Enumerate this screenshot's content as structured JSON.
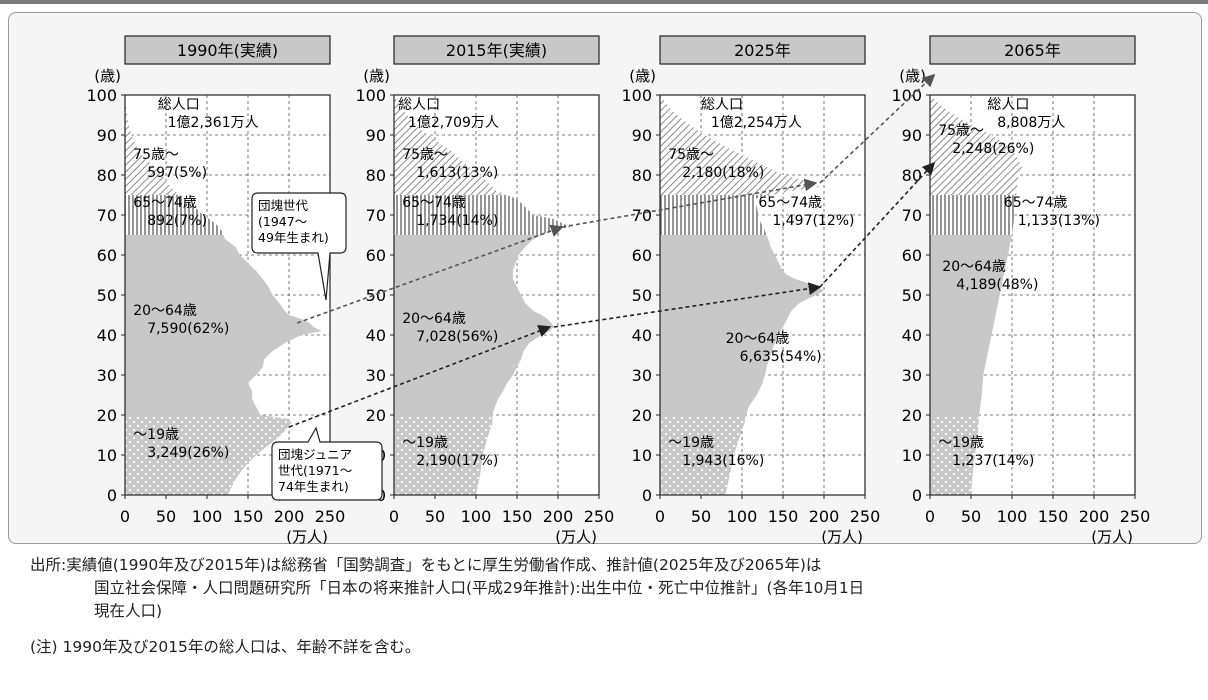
{
  "chart_data": [
    {
      "type": "area",
      "title": "1990年(実績)",
      "ylabel": "(歳)",
      "xlabel": "(万人)",
      "xlim": [
        0,
        250
      ],
      "ylim": [
        0,
        100
      ],
      "xticks": [
        "0",
        "50",
        "100",
        "150",
        "200",
        "250"
      ],
      "yticks": [
        "0",
        "10",
        "20",
        "30",
        "40",
        "50",
        "60",
        "70",
        "80",
        "90",
        "100"
      ],
      "age_profile": {
        "ages": [
          0,
          2,
          4,
          6,
          8,
          10,
          12,
          14,
          16,
          18,
          19,
          20,
          22,
          24,
          26,
          28,
          30,
          32,
          34,
          36,
          38,
          40,
          41,
          42,
          43,
          44,
          45,
          46,
          48,
          50,
          52,
          54,
          56,
          58,
          60,
          62,
          64,
          66,
          68,
          70,
          72,
          74,
          76,
          78,
          80,
          82,
          84,
          86,
          88,
          90,
          92,
          94,
          96,
          98,
          100
        ],
        "values": [
          125,
          130,
          135,
          142,
          150,
          160,
          172,
          185,
          195,
          203,
          200,
          165,
          160,
          155,
          155,
          150,
          160,
          168,
          170,
          180,
          195,
          215,
          240,
          230,
          225,
          215,
          200,
          195,
          188,
          180,
          175,
          168,
          160,
          150,
          140,
          135,
          122,
          118,
          110,
          95,
          85,
          75,
          60,
          52,
          45,
          36,
          25,
          17,
          12,
          8,
          5,
          3,
          2,
          1,
          0
        ]
      },
      "total": {
        "label": "総人口",
        "value": "1億2,361万人"
      },
      "groups": [
        {
          "name": "75歳〜",
          "value": "597(5%)"
        },
        {
          "name": "65〜74歳",
          "value": "892(7%)"
        },
        {
          "name": "20〜64歳",
          "value": "7,590(62%)"
        },
        {
          "name": "〜19歳",
          "value": "3,249(26%)"
        }
      ]
    },
    {
      "type": "area",
      "title": "2015年(実績)",
      "ylabel": "(歳)",
      "xlabel": "(万人)",
      "xlim": [
        0,
        250
      ],
      "ylim": [
        0,
        100
      ],
      "xticks": [
        "0",
        "50",
        "100",
        "150",
        "200",
        "250"
      ],
      "yticks": [
        "0",
        "10",
        "20",
        "30",
        "40",
        "50",
        "60",
        "70",
        "80",
        "90",
        "100"
      ],
      "age_profile": {
        "ages": [
          0,
          5,
          10,
          15,
          18,
          20,
          22,
          24,
          26,
          28,
          30,
          32,
          34,
          36,
          38,
          40,
          41,
          42,
          43,
          44,
          45,
          46,
          48,
          50,
          52,
          54,
          56,
          58,
          60,
          62,
          64,
          66,
          67,
          68,
          69,
          70,
          72,
          74,
          76,
          78,
          80,
          82,
          84,
          86,
          88,
          90,
          92,
          94,
          96,
          98,
          100
        ],
        "values": [
          100,
          105,
          108,
          115,
          120,
          120,
          123,
          127,
          133,
          138,
          145,
          150,
          155,
          158,
          165,
          180,
          190,
          195,
          192,
          187,
          180,
          170,
          160,
          155,
          150,
          145,
          145,
          148,
          152,
          160,
          170,
          190,
          215,
          205,
          195,
          170,
          160,
          150,
          125,
          115,
          105,
          92,
          80,
          70,
          55,
          42,
          30,
          20,
          12,
          5,
          0
        ]
      },
      "total": {
        "label": "総人口",
        "value": "1億2,709万人"
      },
      "groups": [
        {
          "name": "75歳〜",
          "value": "1,613(13%)"
        },
        {
          "name": "65〜74歳",
          "value": "1,734(14%)"
        },
        {
          "name": "20〜64歳",
          "value": "7,028(56%)"
        },
        {
          "name": "〜19歳",
          "value": "2,190(17%)"
        }
      ]
    },
    {
      "type": "area",
      "title": "2025年",
      "ylabel": "(歳)",
      "xlabel": "(万人)",
      "xlim": [
        0,
        250
      ],
      "ylim": [
        0,
        100
      ],
      "xticks": [
        "0",
        "50",
        "100",
        "150",
        "200",
        "250"
      ],
      "yticks": [
        "0",
        "10",
        "20",
        "30",
        "40",
        "50",
        "60",
        "70",
        "80",
        "90",
        "100"
      ],
      "age_profile": {
        "ages": [
          0,
          5,
          10,
          15,
          18,
          20,
          22,
          25,
          28,
          30,
          32,
          35,
          38,
          40,
          42,
          44,
          46,
          48,
          50,
          51,
          52,
          53,
          54,
          55,
          56,
          58,
          60,
          62,
          64,
          66,
          68,
          70,
          72,
          74,
          76,
          77,
          78,
          79,
          80,
          82,
          84,
          86,
          88,
          90,
          92,
          94,
          96,
          98,
          100
        ],
        "values": [
          80,
          85,
          90,
          98,
          103,
          105,
          108,
          118,
          125,
          128,
          130,
          135,
          140,
          145,
          150,
          155,
          160,
          170,
          190,
          200,
          192,
          180,
          165,
          155,
          150,
          145,
          140,
          135,
          132,
          128,
          123,
          120,
          118,
          115,
          160,
          195,
          185,
          170,
          150,
          130,
          110,
          90,
          72,
          55,
          40,
          27,
          15,
          7,
          0
        ]
      },
      "total": {
        "label": "総人口",
        "value": "1億2,254万人"
      },
      "groups": [
        {
          "name": "75歳〜",
          "value": "2,180(18%)"
        },
        {
          "name": "65〜74歳",
          "value": "1,497(12%)"
        },
        {
          "name": "20〜64歳",
          "value": "6,635(54%)"
        },
        {
          "name": "〜19歳",
          "value": "1,943(16%)"
        }
      ]
    },
    {
      "type": "area",
      "title": "2065年",
      "ylabel": "(歳)",
      "xlabel": "(万人)",
      "xlim": [
        0,
        250
      ],
      "ylim": [
        0,
        100
      ],
      "xticks": [
        "0",
        "50",
        "100",
        "150",
        "200",
        "250"
      ],
      "yticks": [
        "0",
        "10",
        "20",
        "30",
        "40",
        "50",
        "60",
        "70",
        "80",
        "90",
        "100"
      ],
      "age_profile": {
        "ages": [
          0,
          5,
          10,
          15,
          20,
          25,
          30,
          35,
          40,
          45,
          50,
          55,
          60,
          65,
          70,
          75,
          80,
          82,
          85,
          88,
          90,
          92,
          94,
          96,
          98,
          100
        ],
        "values": [
          50,
          52,
          55,
          58,
          60,
          63,
          65,
          70,
          75,
          80,
          85,
          90,
          95,
          100,
          103,
          105,
          108,
          112,
          105,
          90,
          75,
          55,
          38,
          22,
          10,
          0
        ]
      },
      "total": {
        "label": "総人口",
        "value": "8,808万人"
      },
      "groups": [
        {
          "name": "75歳〜",
          "value": "2,248(26%)"
        },
        {
          "name": "65〜74歳",
          "value": "1,133(13%)"
        },
        {
          "name": "20〜64歳",
          "value": "4,189(48%)"
        },
        {
          "name": "〜19歳",
          "value": "1,237(14%)"
        }
      ]
    }
  ],
  "age_bands": [
    {
      "name": "75歳〜",
      "from": 75,
      "to": 100,
      "pattern": "diagonal-hatch"
    },
    {
      "name": "65〜74歳",
      "from": 65,
      "to": 75,
      "pattern": "vertical-hatch"
    },
    {
      "name": "20〜64歳",
      "from": 20,
      "to": 65,
      "pattern": "solid-gray"
    },
    {
      "name": "〜19歳",
      "from": 0,
      "to": 20,
      "pattern": "dots"
    }
  ],
  "callouts": [
    {
      "id": "dankai",
      "lines": [
        "団塊世代",
        "(1947〜",
        "49年生まれ)"
      ]
    },
    {
      "id": "dankai-jr",
      "lines": [
        "団塊ジュニア",
        "世代(1971〜",
        "74年生まれ)"
      ]
    }
  ],
  "colors": {
    "panel_bg": "#f5f5f5",
    "plot_bg": "#ffffff",
    "fill_gray": "#c8c8c8",
    "hatch": "#8a8a8a",
    "title_box": "#c8c8c8"
  },
  "notes": {
    "source_line1": "出所:実績値(1990年及び2015年)は総務省「国勢調査」をもとに厚生労働省作成、推計値(2025年及び2065年)は",
    "source_line2": "国立社会保障・人口問題研究所「日本の将来推計人口(平成29年推計):出生中位・死亡中位推計」(各年10月1日",
    "source_line3": "現在人口)",
    "note_line": "(注) 1990年及び2015年の総人口は、年齢不詳を含む。"
  }
}
